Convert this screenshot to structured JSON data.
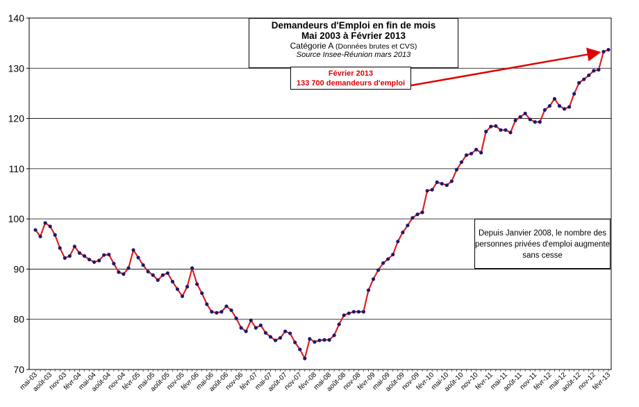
{
  "chart_data": {
    "type": "line",
    "title_lines": [
      "Demandeurs d'Emploi en fin de mois",
      "Mai 2003 à Février 2013"
    ],
    "subtitle": "Catégorie A",
    "subtitle_small": "(Données brutes et CVS)",
    "source": "Source Insee-Réunion mars 2013",
    "callout": [
      "Février 2013",
      "133 700 demandeurs d'emploi"
    ],
    "note": "Depuis Janvier 2008, le nombre des personnes privées d'emploi augmente sans cesse",
    "ylim": [
      70,
      140
    ],
    "yticks": [
      70,
      80,
      90,
      100,
      110,
      120,
      130,
      140
    ],
    "grid": true,
    "xtick_labels": [
      "mai-03",
      "août-03",
      "nov-03",
      "févr-04",
      "mai-04",
      "août-04",
      "nov-04",
      "févr-05",
      "mai-05",
      "août-05",
      "nov-05",
      "févr-06",
      "mai-06",
      "août-06",
      "nov-06",
      "févr-07",
      "mai-07",
      "août-07",
      "nov-07",
      "févr-08",
      "mai-08",
      "août-08",
      "nov-08",
      "févr-09",
      "mai-09",
      "août-09",
      "nov-09",
      "févr-10",
      "mai-10",
      "août-10",
      "nov-10",
      "févr-11",
      "mai-11",
      "août-11",
      "nov-11",
      "févr-12",
      "mai-12",
      "août-12",
      "nov-12",
      "févr-13"
    ],
    "series": [
      {
        "color": "#e02020",
        "marker_color": "#1a1a6e",
        "values": [
          97.8,
          96.5,
          99.2,
          98.5,
          96.8,
          94.2,
          92.2,
          92.6,
          94.5,
          93.2,
          92.6,
          91.9,
          91.4,
          91.7,
          92.8,
          92.9,
          91.1,
          89.4,
          89.0,
          90.2,
          93.8,
          92.3,
          90.8,
          89.5,
          88.8,
          87.8,
          88.8,
          89.2,
          87.5,
          86.0,
          84.6,
          86.5,
          90.2,
          87.0,
          85.2,
          83.0,
          81.5,
          81.3,
          81.5,
          82.6,
          81.8,
          80.2,
          78.3,
          77.6,
          79.8,
          78.3,
          78.8,
          77.3,
          76.5,
          75.8,
          76.3,
          77.6,
          77.2,
          75.4,
          74.0,
          72.2,
          76.1,
          75.5,
          75.8,
          75.9,
          75.9,
          76.8,
          79.0,
          80.8,
          81.2,
          81.5,
          81.5,
          81.5,
          85.8,
          88.0,
          89.8,
          91.2,
          92.0,
          92.9,
          95.5,
          97.3,
          98.7,
          100.2,
          100.9,
          101.3,
          105.6,
          105.8,
          107.3,
          107.0,
          106.7,
          107.5,
          109.8,
          111.3,
          112.7,
          113.0,
          113.8,
          113.2,
          117.4,
          118.4,
          118.5,
          117.7,
          117.7,
          117.2,
          119.6,
          120.3,
          121.0,
          119.8,
          119.3,
          119.3,
          121.7,
          122.5,
          123.9,
          122.5,
          121.9,
          122.3,
          124.9,
          127.1,
          127.8,
          128.6,
          129.5,
          129.7,
          133.3,
          133.7
        ]
      }
    ]
  }
}
